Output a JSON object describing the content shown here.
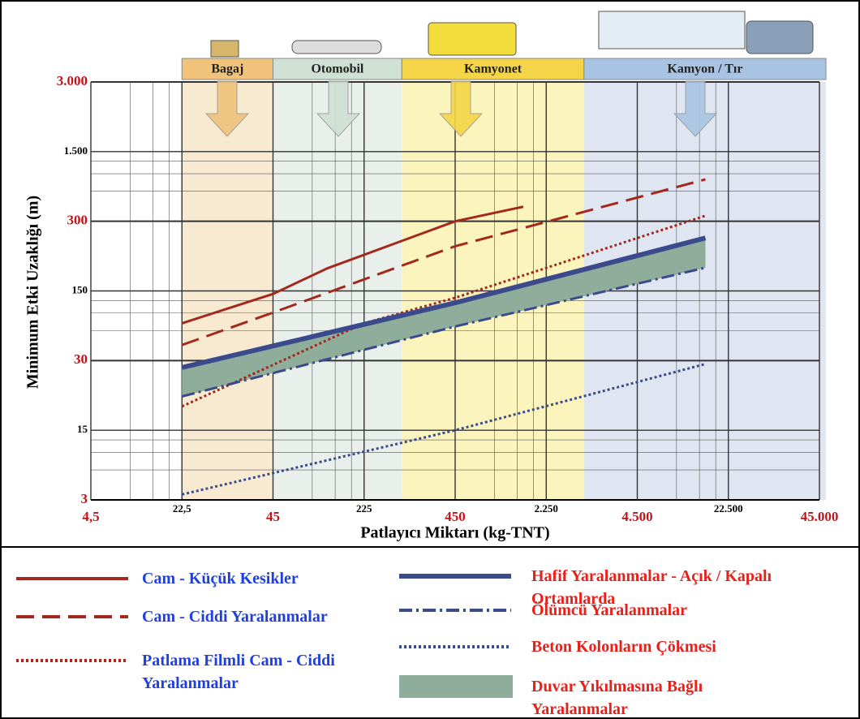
{
  "chart_data": {
    "type": "line",
    "x_label": "Patlayıcı Miktarı (kg-TNT)",
    "y_label": "Minimum Etki Uzaklığı (m)",
    "xscale": "log",
    "yscale": "log",
    "grid": true,
    "xlim": [
      4.5,
      45000
    ],
    "xticks": [
      {
        "value": 4.5,
        "label": "4,5"
      },
      {
        "value": 22.5,
        "label": "22,5"
      },
      45,
      225,
      450,
      {
        "value": 2250,
        "label": "2.250"
      },
      {
        "value": 4500,
        "label": "4.500"
      },
      {
        "value": 22500,
        "label": "22.500"
      },
      {
        "value": 45000,
        "label": "45.000"
      }
    ],
    "ylim": [
      3,
      3000
    ],
    "yticks": [
      3,
      15,
      30,
      150,
      300,
      {
        "value": 1500,
        "label": "1.500"
      },
      {
        "value": 3000,
        "label": "3.000"
      }
    ],
    "regions": [
      {
        "name": "Bagaj",
        "range": [
          22.5,
          45
        ],
        "color": "#f0c27a",
        "fill": "#f8ead0"
      },
      {
        "name": "Otomobil",
        "range": [
          45,
          300
        ],
        "color": "#cfe0d4",
        "fill": "#e9f0ec"
      },
      {
        "name": "Kamyonet",
        "range": [
          300,
          3000
        ],
        "color": "#f5d547",
        "fill": "#fbf5bd"
      },
      {
        "name": "Kamyon / Tır",
        "range": [
          3000,
          45000
        ],
        "color": "#a9c4e3",
        "fill": "#dfe6f1"
      }
    ],
    "series": [
      {
        "name": "Cam - Küçük Kesikler",
        "color": "#a3281e",
        "dash": "solid",
        "label_color": "#1f3fe0",
        "x": [
          22.5,
          45,
          118,
          450,
          1500
        ],
        "values": [
          71,
          140,
          188,
          300,
          420
        ]
      },
      {
        "name": "Cam - Ciddi Yaralanmalar",
        "color": "#a3281e",
        "dash": "dash",
        "label_color": "#1f3fe0",
        "x": [
          22.5,
          45,
          450,
          15000
        ],
        "values": [
          43,
          91,
          234,
          790
        ]
      },
      {
        "name": "Patlama Filmli Cam - Ciddi Yaralanmalar",
        "color": "#a3281e",
        "dash": "dot",
        "label_color": "#1f3fe0",
        "x": [
          22.5,
          225,
          450,
          15000
        ],
        "values": [
          19,
          71,
          128,
          341
        ]
      },
      {
        "name": "Hafif Yaralanmalar - Açık / Kapalı Ortamlarda",
        "color": "#3b4a8c",
        "dash": "solid",
        "width": 6,
        "label_color": "#e8201a",
        "x": [
          22.5,
          450,
          15000
        ],
        "values": [
          28,
          114,
          254
        ]
      },
      {
        "name": "Ölümcü Yaralanmalar",
        "color": "#3b4a8c",
        "dash": "dashdot",
        "label_color": "#e8201a",
        "x": [
          22.5,
          450,
          15000
        ],
        "values": [
          21,
          66,
          189
        ]
      },
      {
        "name": "Beton Kolonların Çökmesi",
        "color": "#3b4a8c",
        "dash": "dot",
        "label_color": "#e8201a",
        "x": [
          22.5,
          450,
          15000
        ],
        "values": [
          3.4,
          15,
          29
        ]
      },
      {
        "name": "Duvar Yıkılmasına Bağlı Yaralanmalar",
        "type": "band",
        "color": "#8fad9b",
        "label_color": "#e8201a",
        "x": [
          22.5,
          450,
          15000
        ],
        "values": [
          28,
          114,
          254
        ],
        "lower": [
          21,
          66,
          189
        ]
      }
    ]
  }
}
